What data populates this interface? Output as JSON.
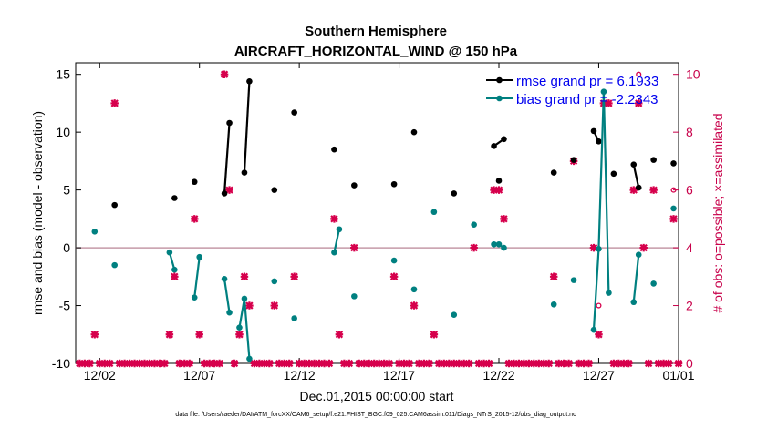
{
  "chart_data": {
    "type": "line",
    "title": "Southern Hemisphere",
    "subtitle": "AIRCRAFT_HORIZONTAL_WIND @ 150 hPa",
    "xlabel": "Dec.01,2015 00:00:00 start",
    "ylabel": "rmse and bias (model - observation)",
    "ylabel_right": "# of obs: o=possible; ×=assimilated",
    "xlim": [
      0.8,
      31.0
    ],
    "ylim": [
      -10,
      16
    ],
    "ylim_right": [
      0,
      10.4
    ],
    "x_ticks": [
      {
        "x": 2,
        "label": "12/02"
      },
      {
        "x": 7,
        "label": "12/07"
      },
      {
        "x": 12,
        "label": "12/12"
      },
      {
        "x": 17,
        "label": "12/17"
      },
      {
        "x": 22,
        "label": "12/22"
      },
      {
        "x": 27,
        "label": "12/27"
      },
      {
        "x": 31,
        "label": "01/01"
      }
    ],
    "y_ticks": [
      -10,
      -5,
      0,
      5,
      10,
      15
    ],
    "y_ticks_right": [
      0,
      2,
      4,
      6,
      8,
      10
    ],
    "zero_line": 0,
    "footnote": "data file: /Users/raeder/DAI/ATM_forcXX/CAM6_setup/f.e21.FHIST_BGC.f09_025.CAM6assim.011/Diags_NTrS_2015-12/obs_diag_output.nc",
    "series": [
      {
        "name": "rmse",
        "legend": "rmse grand pr = 6.1933",
        "color": "#000000",
        "points": [
          [
            2.75,
            3.7
          ],
          [
            5.75,
            4.3
          ],
          [
            6.75,
            5.7
          ],
          [
            8.25,
            4.7
          ],
          [
            8.5,
            10.8
          ],
          [
            9.25,
            6.5
          ],
          [
            9.5,
            14.4
          ],
          [
            10.75,
            5.0
          ],
          [
            11.75,
            11.7
          ],
          [
            13.75,
            8.5
          ],
          [
            14.75,
            5.4
          ],
          [
            16.75,
            5.5
          ],
          [
            17.75,
            10.0
          ],
          [
            19.75,
            4.7
          ],
          [
            21.75,
            8.8
          ],
          [
            22.0,
            5.8
          ],
          [
            22.25,
            9.4
          ],
          [
            24.75,
            6.5
          ],
          [
            25.75,
            7.6
          ],
          [
            26.75,
            10.1
          ],
          [
            27.0,
            9.2
          ],
          [
            27.75,
            6.4
          ],
          [
            28.75,
            7.2
          ],
          [
            29.0,
            5.2
          ],
          [
            29.75,
            7.6
          ],
          [
            30.75,
            7.3
          ]
        ],
        "connected": [
          [
            8.25,
            8.5
          ],
          [
            9.25,
            9.5
          ],
          [
            21.75,
            22.25
          ],
          [
            26.75,
            27.0
          ],
          [
            28.75,
            29.0
          ]
        ]
      },
      {
        "name": "bias",
        "legend": "bias grand pr = -2.2343",
        "color": "#008080",
        "points": [
          [
            1.75,
            1.4
          ],
          [
            2.75,
            -1.5
          ],
          [
            5.5,
            -0.4
          ],
          [
            5.75,
            -1.9
          ],
          [
            6.75,
            -4.3
          ],
          [
            7.0,
            -0.8
          ],
          [
            8.25,
            -2.7
          ],
          [
            8.5,
            -5.6
          ],
          [
            9.0,
            -6.9
          ],
          [
            9.25,
            -4.4
          ],
          [
            9.5,
            -9.6
          ],
          [
            10.75,
            -2.9
          ],
          [
            11.75,
            -6.1
          ],
          [
            13.75,
            -0.4
          ],
          [
            14.0,
            1.6
          ],
          [
            14.75,
            -4.2
          ],
          [
            16.75,
            -1.1
          ],
          [
            17.75,
            -3.6
          ],
          [
            18.75,
            3.1
          ],
          [
            19.75,
            -5.8
          ],
          [
            20.75,
            2.0
          ],
          [
            21.75,
            0.3
          ],
          [
            22.0,
            0.3
          ],
          [
            22.25,
            0.0
          ],
          [
            24.75,
            -4.9
          ],
          [
            25.75,
            -2.8
          ],
          [
            26.75,
            -7.1
          ],
          [
            27.0,
            -0.1
          ],
          [
            27.25,
            13.5
          ],
          [
            27.5,
            -3.9
          ],
          [
            28.75,
            -4.7
          ],
          [
            29.0,
            -0.6
          ],
          [
            29.75,
            -3.1
          ],
          [
            30.75,
            3.4
          ]
        ],
        "connected": [
          [
            5.5,
            5.75
          ],
          [
            6.75,
            7.0
          ],
          [
            8.25,
            8.5
          ],
          [
            9.0,
            9.25
          ],
          [
            9.25,
            9.5
          ],
          [
            13.75,
            14.0
          ],
          [
            21.75,
            22.0
          ],
          [
            22.0,
            22.25
          ],
          [
            26.75,
            27.0
          ],
          [
            27.0,
            27.25
          ],
          [
            27.25,
            27.5
          ],
          [
            28.75,
            29.0
          ]
        ]
      }
    ],
    "obs_counts": {
      "color": "#d6004c",
      "axis": "right",
      "possible": [
        [
          1.0,
          0
        ],
        [
          1.25,
          0
        ],
        [
          1.5,
          0
        ],
        [
          1.75,
          1
        ],
        [
          2.0,
          0
        ],
        [
          2.25,
          0
        ],
        [
          2.5,
          0
        ],
        [
          2.75,
          9
        ],
        [
          3.0,
          0
        ],
        [
          3.25,
          0
        ],
        [
          3.5,
          0
        ],
        [
          3.75,
          0
        ],
        [
          4.0,
          0
        ],
        [
          4.25,
          0
        ],
        [
          4.5,
          0
        ],
        [
          4.75,
          0
        ],
        [
          5.0,
          0
        ],
        [
          5.25,
          0
        ],
        [
          5.5,
          1
        ],
        [
          5.75,
          3
        ],
        [
          6.0,
          0
        ],
        [
          6.25,
          0
        ],
        [
          6.5,
          0
        ],
        [
          6.75,
          5
        ],
        [
          7.0,
          1
        ],
        [
          7.25,
          0
        ],
        [
          7.5,
          0
        ],
        [
          7.75,
          0
        ],
        [
          8.0,
          0
        ],
        [
          8.25,
          10
        ],
        [
          8.5,
          6
        ],
        [
          8.75,
          0
        ],
        [
          9.0,
          1
        ],
        [
          9.25,
          3
        ],
        [
          9.5,
          2
        ],
        [
          9.75,
          0
        ],
        [
          10.0,
          0
        ],
        [
          10.25,
          0
        ],
        [
          10.5,
          0
        ],
        [
          10.75,
          2
        ],
        [
          11.0,
          0
        ],
        [
          11.25,
          0
        ],
        [
          11.5,
          0
        ],
        [
          11.75,
          3
        ],
        [
          12.0,
          0
        ],
        [
          12.25,
          0
        ],
        [
          12.5,
          0
        ],
        [
          12.75,
          0
        ],
        [
          13.0,
          0
        ],
        [
          13.25,
          0
        ],
        [
          13.5,
          0
        ],
        [
          13.75,
          5
        ],
        [
          14.0,
          1
        ],
        [
          14.25,
          0
        ],
        [
          14.5,
          0
        ],
        [
          14.75,
          4
        ],
        [
          15.0,
          0
        ],
        [
          15.25,
          0
        ],
        [
          15.5,
          0
        ],
        [
          15.75,
          0
        ],
        [
          16.0,
          0
        ],
        [
          16.25,
          0
        ],
        [
          16.5,
          0
        ],
        [
          16.75,
          3
        ],
        [
          17.0,
          0
        ],
        [
          17.25,
          0
        ],
        [
          17.5,
          0
        ],
        [
          17.75,
          2
        ],
        [
          18.0,
          0
        ],
        [
          18.25,
          0
        ],
        [
          18.5,
          0
        ],
        [
          18.75,
          1
        ],
        [
          19.0,
          0
        ],
        [
          19.25,
          0
        ],
        [
          19.5,
          0
        ],
        [
          19.75,
          0
        ],
        [
          20.0,
          0
        ],
        [
          20.25,
          0
        ],
        [
          20.5,
          0
        ],
        [
          20.75,
          4
        ],
        [
          21.0,
          0
        ],
        [
          21.25,
          0
        ],
        [
          21.5,
          0
        ],
        [
          21.75,
          6
        ],
        [
          22.0,
          6
        ],
        [
          22.25,
          5
        ],
        [
          22.5,
          0
        ],
        [
          22.75,
          0
        ],
        [
          23.0,
          0
        ],
        [
          23.25,
          0
        ],
        [
          23.5,
          0
        ],
        [
          23.75,
          0
        ],
        [
          24.0,
          0
        ],
        [
          24.25,
          0
        ],
        [
          24.5,
          0
        ],
        [
          24.75,
          3
        ],
        [
          25.0,
          0
        ],
        [
          25.25,
          0
        ],
        [
          25.5,
          0
        ],
        [
          25.75,
          7
        ],
        [
          26.0,
          0
        ],
        [
          26.25,
          0
        ],
        [
          26.5,
          0
        ],
        [
          26.75,
          4
        ],
        [
          27.0,
          2
        ],
        [
          27.25,
          9
        ],
        [
          27.5,
          9
        ],
        [
          27.75,
          0
        ],
        [
          28.0,
          0
        ],
        [
          28.25,
          0
        ],
        [
          28.5,
          0
        ],
        [
          28.75,
          6
        ],
        [
          29.0,
          10
        ],
        [
          29.25,
          4
        ],
        [
          29.5,
          0
        ],
        [
          29.75,
          6
        ],
        [
          30.0,
          0
        ],
        [
          30.25,
          0
        ],
        [
          30.5,
          0
        ],
        [
          30.75,
          6
        ],
        [
          31.0,
          0
        ]
      ],
      "assimilated": [
        [
          1.0,
          0
        ],
        [
          1.25,
          0
        ],
        [
          1.5,
          0
        ],
        [
          1.75,
          1
        ],
        [
          2.0,
          0
        ],
        [
          2.25,
          0
        ],
        [
          2.5,
          0
        ],
        [
          2.75,
          9
        ],
        [
          3.0,
          0
        ],
        [
          3.25,
          0
        ],
        [
          3.5,
          0
        ],
        [
          3.75,
          0
        ],
        [
          4.0,
          0
        ],
        [
          4.25,
          0
        ],
        [
          4.5,
          0
        ],
        [
          4.75,
          0
        ],
        [
          5.0,
          0
        ],
        [
          5.25,
          0
        ],
        [
          5.5,
          1
        ],
        [
          5.75,
          3
        ],
        [
          6.0,
          0
        ],
        [
          6.25,
          0
        ],
        [
          6.5,
          0
        ],
        [
          6.75,
          5
        ],
        [
          7.0,
          1
        ],
        [
          7.25,
          0
        ],
        [
          7.5,
          0
        ],
        [
          7.75,
          0
        ],
        [
          8.0,
          0
        ],
        [
          8.25,
          10
        ],
        [
          8.5,
          6
        ],
        [
          8.75,
          0
        ],
        [
          9.0,
          1
        ],
        [
          9.25,
          3
        ],
        [
          9.5,
          2
        ],
        [
          9.75,
          0
        ],
        [
          10.0,
          0
        ],
        [
          10.25,
          0
        ],
        [
          10.5,
          0
        ],
        [
          10.75,
          2
        ],
        [
          11.0,
          0
        ],
        [
          11.25,
          0
        ],
        [
          11.5,
          0
        ],
        [
          11.75,
          3
        ],
        [
          12.0,
          0
        ],
        [
          12.25,
          0
        ],
        [
          12.5,
          0
        ],
        [
          12.75,
          0
        ],
        [
          13.0,
          0
        ],
        [
          13.25,
          0
        ],
        [
          13.5,
          0
        ],
        [
          13.75,
          5
        ],
        [
          14.0,
          1
        ],
        [
          14.25,
          0
        ],
        [
          14.5,
          0
        ],
        [
          14.75,
          4
        ],
        [
          15.0,
          0
        ],
        [
          15.25,
          0
        ],
        [
          15.5,
          0
        ],
        [
          15.75,
          0
        ],
        [
          16.0,
          0
        ],
        [
          16.25,
          0
        ],
        [
          16.5,
          0
        ],
        [
          16.75,
          3
        ],
        [
          17.0,
          0
        ],
        [
          17.25,
          0
        ],
        [
          17.5,
          0
        ],
        [
          17.75,
          2
        ],
        [
          18.0,
          0
        ],
        [
          18.25,
          0
        ],
        [
          18.5,
          0
        ],
        [
          18.75,
          1
        ],
        [
          19.0,
          0
        ],
        [
          19.25,
          0
        ],
        [
          19.5,
          0
        ],
        [
          19.75,
          0
        ],
        [
          20.0,
          0
        ],
        [
          20.25,
          0
        ],
        [
          20.5,
          0
        ],
        [
          20.75,
          4
        ],
        [
          21.0,
          0
        ],
        [
          21.25,
          0
        ],
        [
          21.5,
          0
        ],
        [
          21.75,
          6
        ],
        [
          22.0,
          6
        ],
        [
          22.25,
          5
        ],
        [
          22.5,
          0
        ],
        [
          22.75,
          0
        ],
        [
          23.0,
          0
        ],
        [
          23.25,
          0
        ],
        [
          23.5,
          0
        ],
        [
          23.75,
          0
        ],
        [
          24.0,
          0
        ],
        [
          24.25,
          0
        ],
        [
          24.5,
          0
        ],
        [
          24.75,
          3
        ],
        [
          25.0,
          0
        ],
        [
          25.25,
          0
        ],
        [
          25.5,
          0
        ],
        [
          25.75,
          7
        ],
        [
          26.0,
          0
        ],
        [
          26.25,
          0
        ],
        [
          26.5,
          0
        ],
        [
          26.75,
          4
        ],
        [
          27.0,
          1
        ],
        [
          27.25,
          9
        ],
        [
          27.5,
          9
        ],
        [
          27.75,
          0
        ],
        [
          28.0,
          0
        ],
        [
          28.25,
          0
        ],
        [
          28.5,
          0
        ],
        [
          28.75,
          6
        ],
        [
          29.0,
          9
        ],
        [
          29.25,
          4
        ],
        [
          29.5,
          0
        ],
        [
          29.75,
          6
        ],
        [
          30.0,
          0
        ],
        [
          30.25,
          0
        ],
        [
          30.5,
          0
        ],
        [
          30.75,
          5
        ],
        [
          31.0,
          0
        ]
      ]
    }
  }
}
